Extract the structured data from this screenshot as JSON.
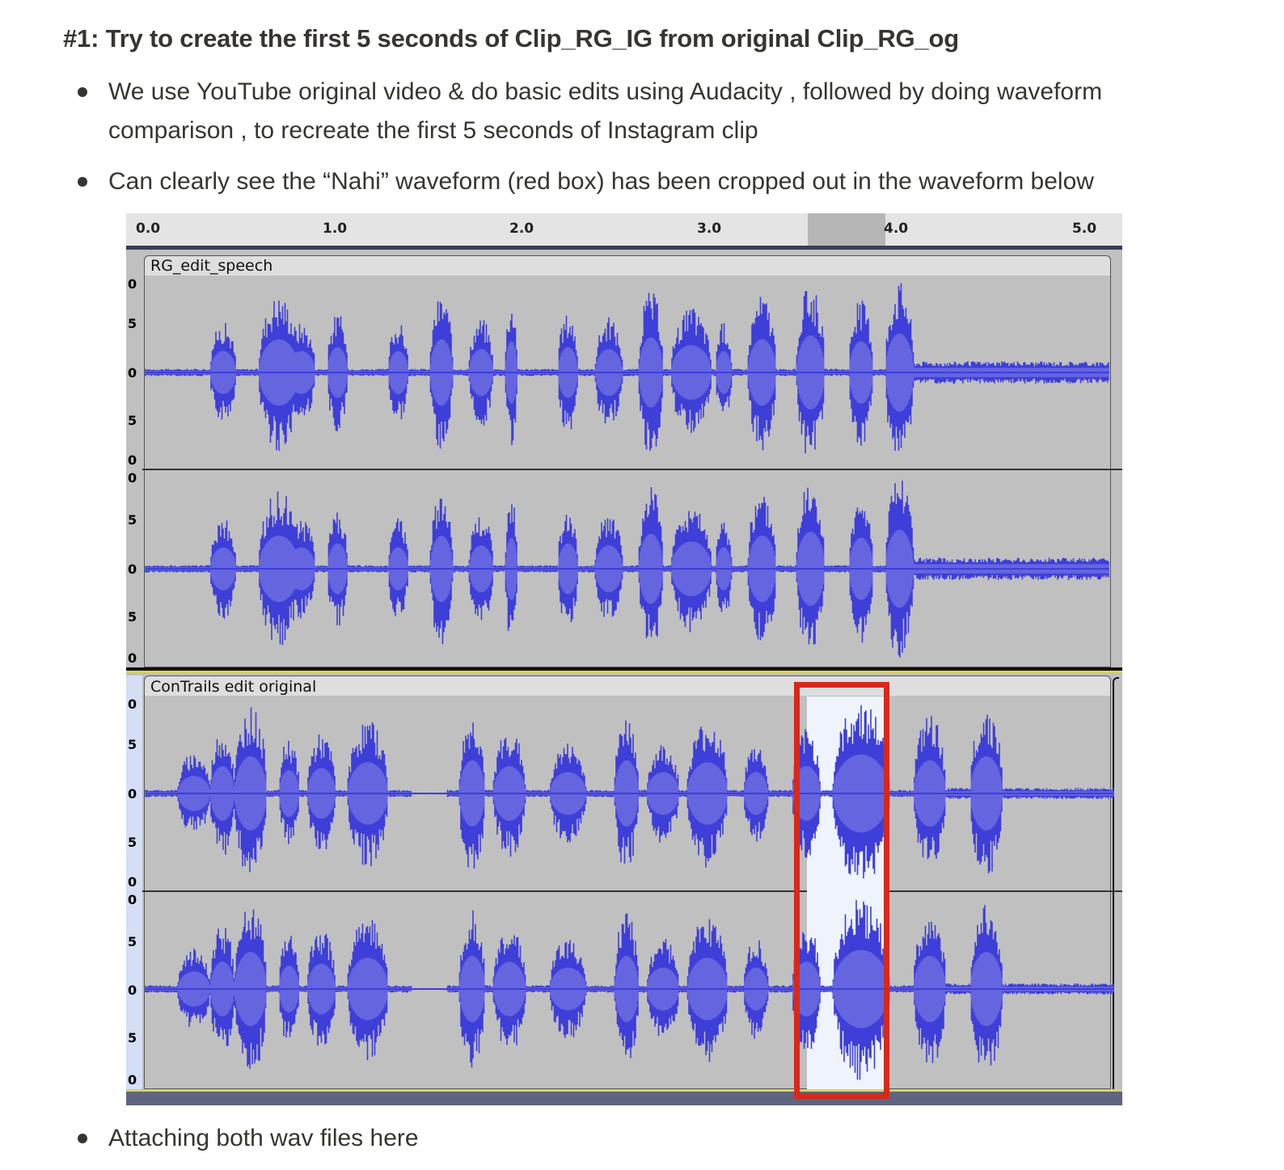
{
  "heading": "#1: Try to create the first 5 seconds of Clip_RG_IG from original Clip_RG_og",
  "bullets": [
    "We use YouTube original video & do basic edits using Audacity , followed by doing waveform",
    "comparison , to recreate the first 5 seconds of Instagram clip",
    "Can clearly see the “Nahi” waveform (red box) has been cropped out in the waveform below",
    "Attaching both wav files here"
  ],
  "audacity": {
    "ruler": [
      "0.0",
      "1.0",
      "2.0",
      "3.0",
      "4.0",
      "5.0"
    ],
    "tracks": [
      {
        "name": "RG_edit_speech"
      },
      {
        "name": "ConTrails edit original"
      }
    ],
    "scale_labels": [
      "0",
      "5",
      "0",
      "5",
      "0"
    ],
    "colors": {
      "waveform": "#3e3ed8",
      "rms": "#6565e0",
      "background": "#c0c0c0",
      "selection": "#eef3fc",
      "highlight_box": "#d8281c"
    }
  }
}
